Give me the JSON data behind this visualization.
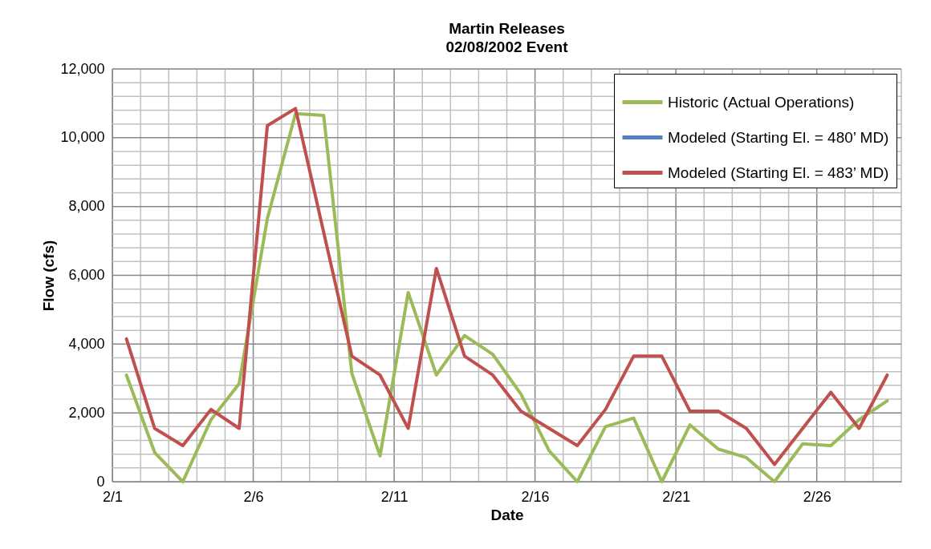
{
  "chart_data": {
    "type": "line",
    "title": "Martin Releases",
    "subtitle": "02/08/2002 Event",
    "xlabel": "Date",
    "ylabel": "Flow (cfs)",
    "x": [
      "2002-02-01T12:00",
      "2002-02-02T12:00",
      "2002-02-03T12:00",
      "2002-02-04T12:00",
      "2002-02-05T12:00",
      "2002-02-06T12:00",
      "2002-02-07T12:00",
      "2002-02-08T12:00",
      "2002-02-09T12:00",
      "2002-02-10T12:00",
      "2002-02-11T12:00",
      "2002-02-12T12:00",
      "2002-02-13T12:00",
      "2002-02-14T12:00",
      "2002-02-15T12:00",
      "2002-02-16T12:00",
      "2002-02-17T12:00",
      "2002-02-18T12:00",
      "2002-02-19T12:00",
      "2002-02-20T12:00",
      "2002-02-21T12:00",
      "2002-02-22T12:00",
      "2002-02-23T12:00",
      "2002-02-24T12:00",
      "2002-02-25T12:00",
      "2002-02-26T12:00",
      "2002-02-27T12:00",
      "2002-02-28T12:00"
    ],
    "series": [
      {
        "name": "Historic (Actual Operations)",
        "color": "#9bbb59",
        "values": [
          3100,
          850,
          0,
          1800,
          2850,
          7650,
          10700,
          10650,
          3150,
          750,
          5500,
          3100,
          4250,
          3700,
          2550,
          900,
          0,
          1600,
          1850,
          0,
          1650,
          950,
          700,
          0,
          1100,
          1050,
          1800,
          2350
        ]
      },
      {
        "name": "Modeled (Starting El. = 480’ MD)",
        "color": "#4f81bd",
        "values": [
          null,
          null,
          null,
          null,
          null,
          null,
          null,
          null,
          null,
          null,
          null,
          null,
          null,
          null,
          null,
          null,
          null,
          null,
          null,
          null,
          null,
          null,
          null,
          null,
          null,
          null,
          null,
          null
        ]
      },
      {
        "name": "Modeled (Starting El. = 483’ MD)",
        "color": "#c0504d",
        "values": [
          4150,
          1550,
          1050,
          2100,
          1550,
          10350,
          10850,
          7250,
          3650,
          3100,
          1550,
          6200,
          3650,
          3100,
          2050,
          1550,
          1050,
          2100,
          3650,
          3650,
          2050,
          2050,
          1550,
          500,
          1550,
          2600,
          1550,
          3100
        ]
      }
    ],
    "xlim": [
      "2002-02-01",
      "2002-03-01"
    ],
    "xticks": [
      {
        "value": "2002-02-01",
        "label": "2/1"
      },
      {
        "value": "2002-02-02",
        "label": null
      },
      {
        "value": "2002-02-03",
        "label": null
      },
      {
        "value": "2002-02-04",
        "label": null
      },
      {
        "value": "2002-02-05",
        "label": null
      },
      {
        "value": "2002-02-06",
        "label": "2/6"
      },
      {
        "value": "2002-02-07",
        "label": null
      },
      {
        "value": "2002-02-08",
        "label": null
      },
      {
        "value": "2002-02-09",
        "label": null
      },
      {
        "value": "2002-02-10",
        "label": null
      },
      {
        "value": "2002-02-11",
        "label": "2/11"
      },
      {
        "value": "2002-02-12",
        "label": null
      },
      {
        "value": "2002-02-13",
        "label": null
      },
      {
        "value": "2002-02-14",
        "label": null
      },
      {
        "value": "2002-02-15",
        "label": null
      },
      {
        "value": "2002-02-16",
        "label": "2/16"
      },
      {
        "value": "2002-02-17",
        "label": null
      },
      {
        "value": "2002-02-18",
        "label": null
      },
      {
        "value": "2002-02-19",
        "label": null
      },
      {
        "value": "2002-02-20",
        "label": null
      },
      {
        "value": "2002-02-21",
        "label": "2/21"
      },
      {
        "value": "2002-02-22",
        "label": null
      },
      {
        "value": "2002-02-23",
        "label": null
      },
      {
        "value": "2002-02-24",
        "label": null
      },
      {
        "value": "2002-02-25",
        "label": null
      },
      {
        "value": "2002-02-26",
        "label": "2/26"
      },
      {
        "value": "2002-02-27",
        "label": null
      },
      {
        "value": "2002-02-28",
        "label": null
      },
      {
        "value": "2002-03-01",
        "label": null
      }
    ],
    "ylim": [
      0,
      12000
    ],
    "yticks": [
      0,
      {
        "value": 400,
        "label": null
      },
      {
        "value": 800,
        "label": null
      },
      {
        "value": 1200,
        "label": null
      },
      {
        "value": 1600,
        "label": null
      },
      {
        "value": 2000,
        "label": "2,000"
      },
      {
        "value": 2400,
        "label": null
      },
      {
        "value": 2800,
        "label": null
      },
      {
        "value": 3200,
        "label": null
      },
      {
        "value": 3600,
        "label": null
      },
      {
        "value": 4000,
        "label": "4,000"
      },
      {
        "value": 4400,
        "label": null
      },
      {
        "value": 4800,
        "label": null
      },
      {
        "value": 5200,
        "label": null
      },
      {
        "value": 5600,
        "label": null
      },
      {
        "value": 6000,
        "label": "6,000"
      },
      {
        "value": 6400,
        "label": null
      },
      {
        "value": 6800,
        "label": null
      },
      {
        "value": 7200,
        "label": null
      },
      {
        "value": 7600,
        "label": null
      },
      {
        "value": 8000,
        "label": "8,000"
      },
      {
        "value": 8400,
        "label": null
      },
      {
        "value": 8800,
        "label": null
      },
      {
        "value": 9200,
        "label": null
      },
      {
        "value": 9600,
        "label": null
      },
      {
        "value": 10000,
        "label": "10,000"
      },
      {
        "value": 10400,
        "label": null
      },
      {
        "value": 10800,
        "label": null
      },
      {
        "value": 11200,
        "label": null
      },
      {
        "value": 11600,
        "label": null
      },
      {
        "value": 12000,
        "label": "12,000"
      }
    ],
    "grid": true,
    "legend": "top right",
    "marker": "none",
    "line_style": "solid"
  }
}
